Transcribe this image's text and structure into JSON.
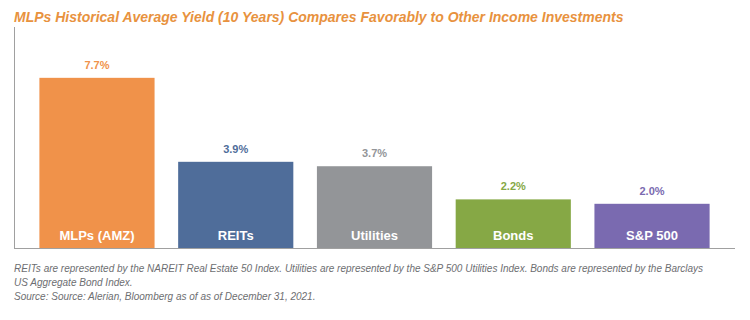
{
  "chart_data": {
    "type": "bar",
    "title": "MLPs Historical Average Yield (10 Years) Compares Favorably to Other Income Investments",
    "categories": [
      "MLPs (AMZ)",
      "REITs",
      "Utilities",
      "Bonds",
      "S&P 500"
    ],
    "values": [
      7.7,
      3.9,
      3.7,
      2.2,
      2.0
    ],
    "value_labels": [
      "7.7%",
      "3.9%",
      "3.7%",
      "2.2%",
      "2.0%"
    ],
    "colors": [
      "#f0924a",
      "#4f6d9a",
      "#939598",
      "#86a845",
      "#7a6ab0"
    ],
    "ylim": [
      0,
      10
    ],
    "data_labels": true,
    "tick_labels": false,
    "footnote": [
      "REITs are represented by the NAREIT Real Estate 50 Index. Utilities are represented by the S&P 500 Utilities Index. Bonds are represented by the Barclays",
      "US Aggregate Bond Index."
    ],
    "source": "Source: Source: Alerian, Bloomberg as of as of December 31, 2021."
  }
}
